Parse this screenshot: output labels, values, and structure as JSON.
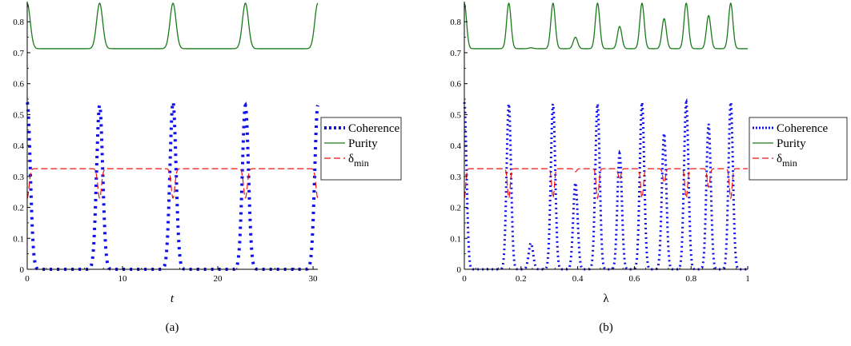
{
  "chart_data": [
    {
      "type": "line",
      "caption": "(a)",
      "xlabel": "t",
      "ylabel": "",
      "xlim": [
        0,
        30.5
      ],
      "ylim": [
        0,
        0.86
      ],
      "x_ticks": [
        0,
        10,
        20,
        30
      ],
      "x_tick_labels": [
        "0",
        "10",
        "20",
        "30"
      ],
      "y_ticks": [
        0,
        0.1,
        0.2,
        0.3,
        0.4,
        0.5,
        0.6,
        0.7,
        0.8
      ],
      "y_tick_labels": [
        "0",
        "0.1",
        "0.2",
        "0.3",
        "0.4",
        "0.5",
        "0.6",
        "0.7",
        "0.8"
      ],
      "legend": {
        "position": "right",
        "entries": [
          "Coherence",
          "Purity",
          "δmin"
        ]
      },
      "series": [
        {
          "name": "Coherence",
          "style": "dotted",
          "color": "#1010ee",
          "baseline": 0.0,
          "peaks": [
            {
              "x": 0.0,
              "y": 0.54
            },
            {
              "x": 7.6,
              "y": 0.53
            },
            {
              "x": 15.3,
              "y": 0.54
            },
            {
              "x": 22.9,
              "y": 0.53
            },
            {
              "x": 30.5,
              "y": 0.53
            }
          ],
          "peak_width": 0.45
        },
        {
          "name": "Purity",
          "style": "solid",
          "color": "#1a7a1a",
          "baseline": 0.713,
          "peaks": [
            {
              "x": 0.0,
              "y": 0.86
            },
            {
              "x": 7.6,
              "y": 0.86
            },
            {
              "x": 15.3,
              "y": 0.86
            },
            {
              "x": 22.9,
              "y": 0.86
            },
            {
              "x": 30.5,
              "y": 0.86
            }
          ],
          "peak_width": 0.45
        },
        {
          "name": "δmin",
          "style": "dashed",
          "color": "#ee1111",
          "baseline": 0.325,
          "dips": [
            {
              "x": 0.0,
              "y": 0.23
            },
            {
              "x": 7.6,
              "y": 0.23
            },
            {
              "x": 15.3,
              "y": 0.23
            },
            {
              "x": 22.9,
              "y": 0.23
            },
            {
              "x": 30.5,
              "y": 0.23
            }
          ],
          "peak_width": 0.45
        }
      ]
    },
    {
      "type": "line",
      "caption": "(b)",
      "xlabel": "λ",
      "ylabel": "",
      "xlim": [
        0,
        1
      ],
      "ylim": [
        0,
        0.86
      ],
      "x_ticks": [
        0,
        0.2,
        0.4,
        0.6,
        0.8,
        1
      ],
      "x_tick_labels": [
        "0",
        "0.2",
        "0.4",
        "0.6",
        "0.8",
        "1"
      ],
      "y_ticks": [
        0,
        0.1,
        0.2,
        0.3,
        0.4,
        0.5,
        0.6,
        0.7,
        0.8
      ],
      "y_tick_labels": [
        "0",
        "0.1",
        "0.2",
        "0.3",
        "0.4",
        "0.5",
        "0.6",
        "0.7",
        "0.8"
      ],
      "legend": {
        "position": "right",
        "entries": [
          "Coherence",
          "Purity",
          "δmin"
        ]
      },
      "series": [
        {
          "name": "Coherence",
          "style": "dotted",
          "color": "#1010ee",
          "baseline": 0.0,
          "peaks": [
            {
              "x": 0.0,
              "y": 0.54
            },
            {
              "x": 0.157,
              "y": 0.535
            },
            {
              "x": 0.235,
              "y": 0.085
            },
            {
              "x": 0.313,
              "y": 0.535
            },
            {
              "x": 0.392,
              "y": 0.28
            },
            {
              "x": 0.47,
              "y": 0.535
            },
            {
              "x": 0.548,
              "y": 0.375
            },
            {
              "x": 0.627,
              "y": 0.54
            },
            {
              "x": 0.705,
              "y": 0.44
            },
            {
              "x": 0.783,
              "y": 0.54
            },
            {
              "x": 0.862,
              "y": 0.47
            },
            {
              "x": 0.94,
              "y": 0.54
            }
          ],
          "peak_width": 0.011
        },
        {
          "name": "Purity",
          "style": "solid",
          "color": "#1a7a1a",
          "baseline": 0.713,
          "peaks": [
            {
              "x": 0.0,
              "y": 0.86
            },
            {
              "x": 0.157,
              "y": 0.86
            },
            {
              "x": 0.235,
              "y": 0.716
            },
            {
              "x": 0.313,
              "y": 0.86
            },
            {
              "x": 0.392,
              "y": 0.75
            },
            {
              "x": 0.47,
              "y": 0.86
            },
            {
              "x": 0.548,
              "y": 0.785
            },
            {
              "x": 0.627,
              "y": 0.86
            },
            {
              "x": 0.705,
              "y": 0.81
            },
            {
              "x": 0.783,
              "y": 0.86
            },
            {
              "x": 0.862,
              "y": 0.82
            },
            {
              "x": 0.94,
              "y": 0.86
            }
          ],
          "peak_width": 0.011
        },
        {
          "name": "δmin",
          "style": "dashed",
          "color": "#ee1111",
          "baseline": 0.325,
          "dips": [
            {
              "x": 0.0,
              "y": 0.23
            },
            {
              "x": 0.157,
              "y": 0.23
            },
            {
              "x": 0.235,
              "y": 0.325
            },
            {
              "x": 0.313,
              "y": 0.23
            },
            {
              "x": 0.392,
              "y": 0.315
            },
            {
              "x": 0.47,
              "y": 0.23
            },
            {
              "x": 0.548,
              "y": 0.29
            },
            {
              "x": 0.627,
              "y": 0.23
            },
            {
              "x": 0.705,
              "y": 0.28
            },
            {
              "x": 0.783,
              "y": 0.23
            },
            {
              "x": 0.862,
              "y": 0.265
            },
            {
              "x": 0.94,
              "y": 0.23
            }
          ],
          "peak_width": 0.011
        }
      ]
    }
  ]
}
